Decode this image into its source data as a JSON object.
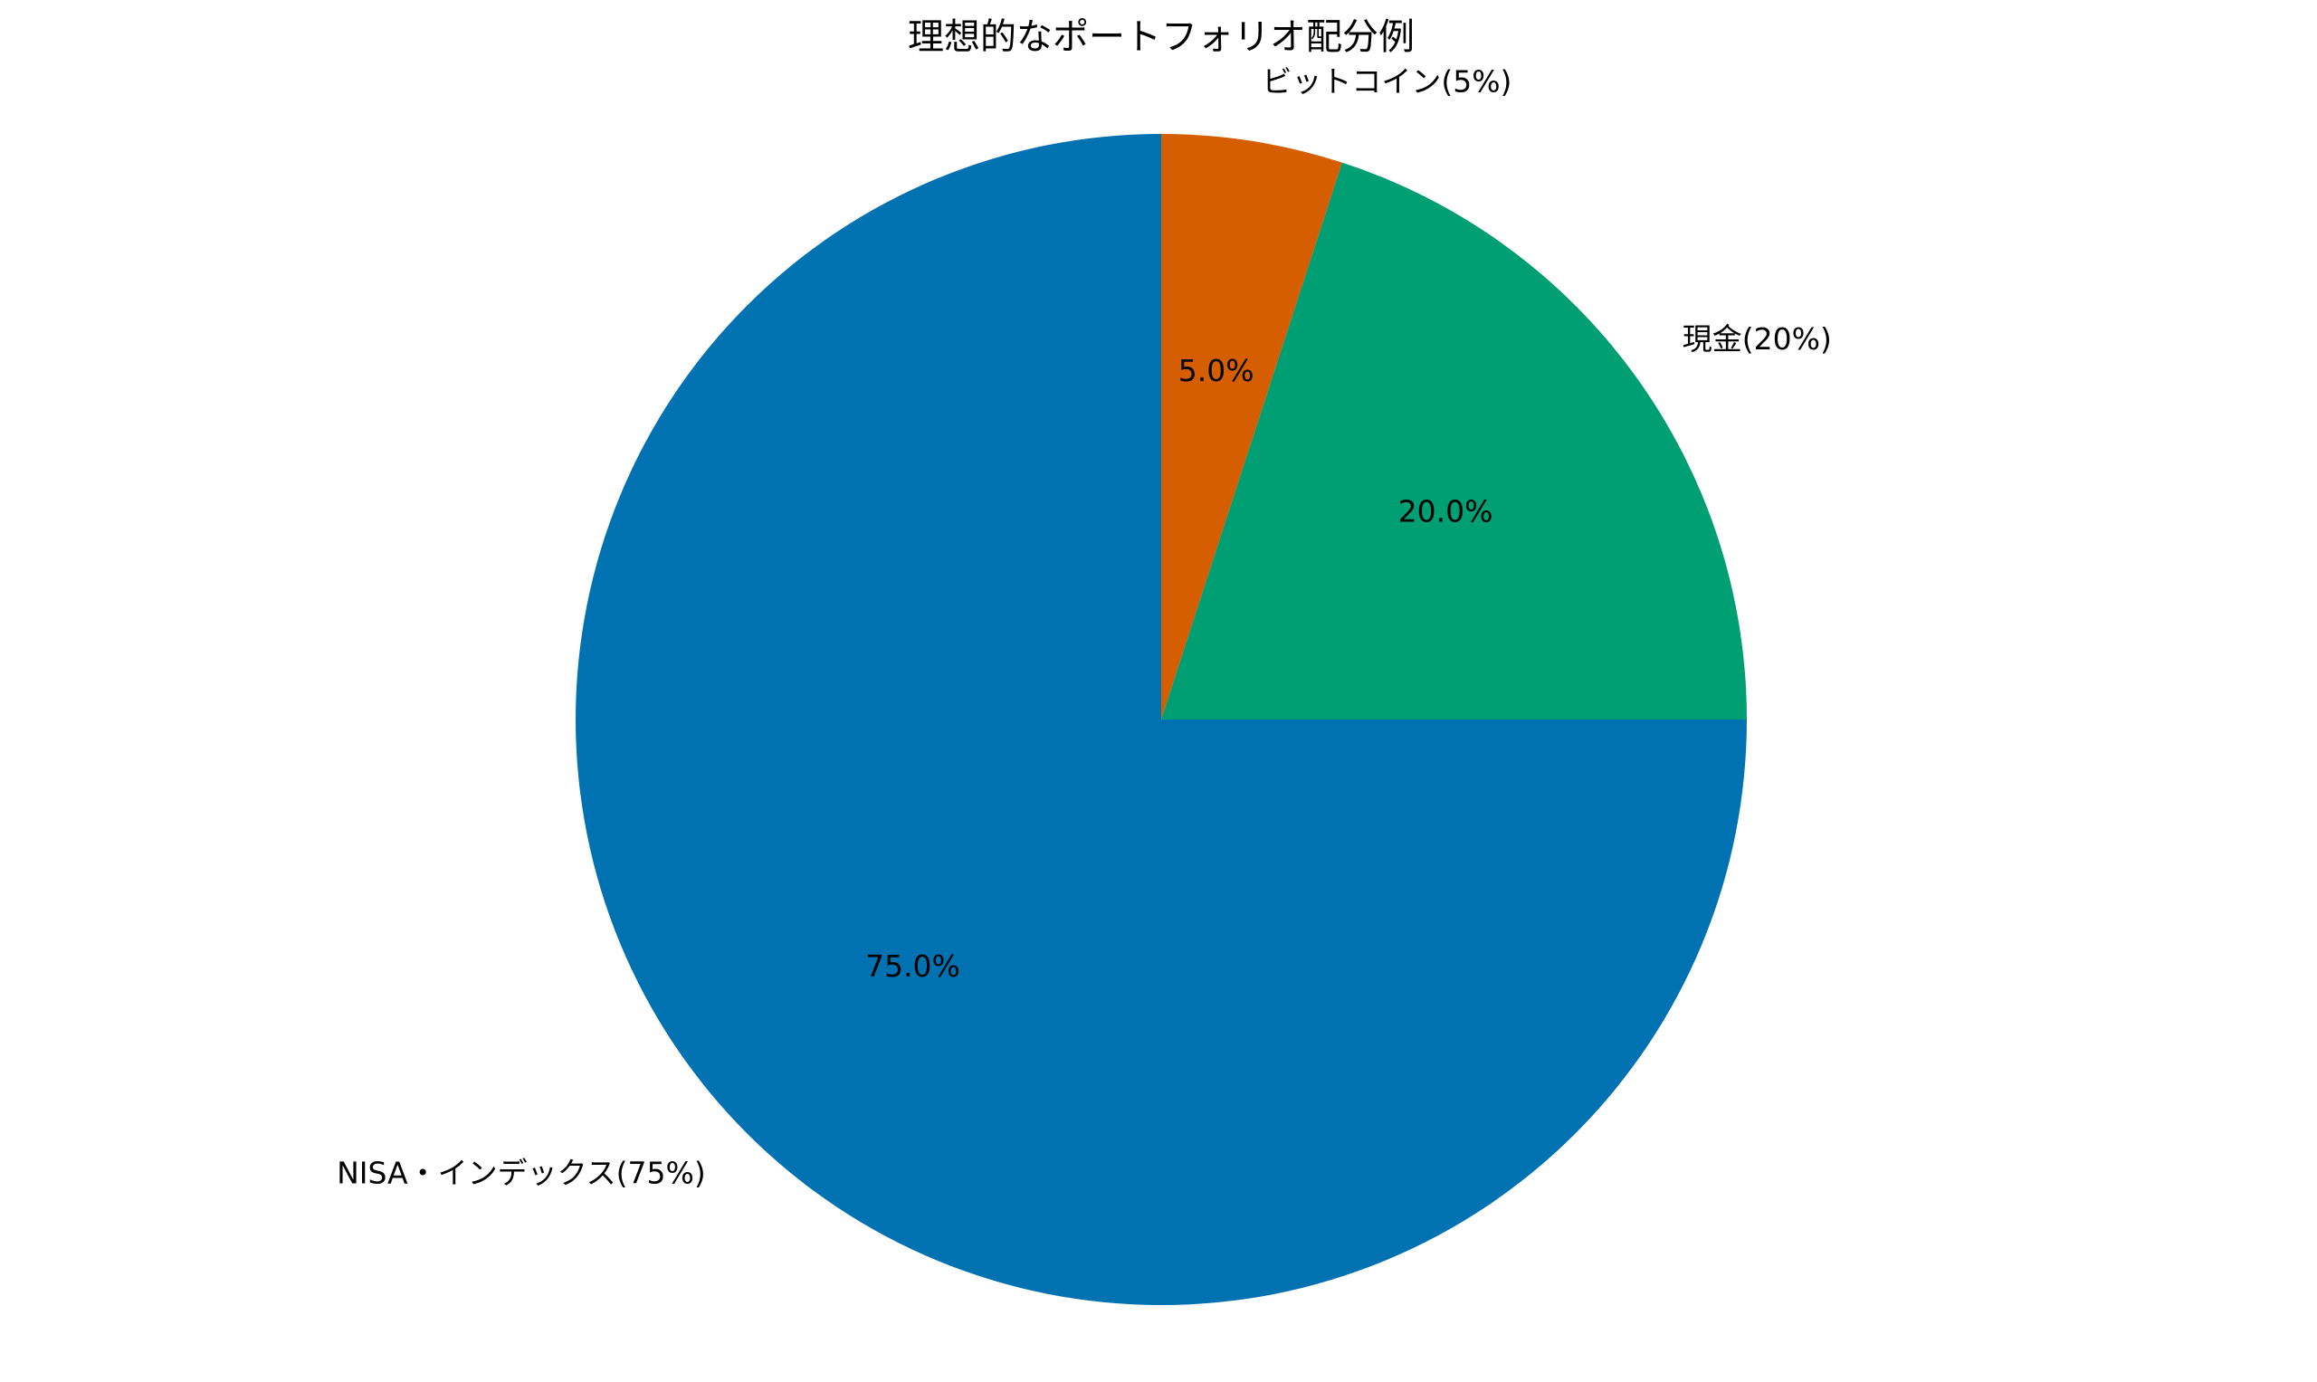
{
  "chart_data": {
    "type": "pie",
    "title": "理想的なポートフォリオ配分例",
    "slices": [
      {
        "label": "ビットコイン(5%)",
        "value": 5,
        "pct_label": "5.0%",
        "color": "#D55E00"
      },
      {
        "label": "現金(20%)",
        "value": 20,
        "pct_label": "20.0%",
        "color": "#009E73"
      },
      {
        "label": "NISA・インデックス(75%)",
        "value": 75,
        "pct_label": "75.0%",
        "color": "#0072B2"
      }
    ],
    "start_angle": "top",
    "direction": "clockwise"
  }
}
